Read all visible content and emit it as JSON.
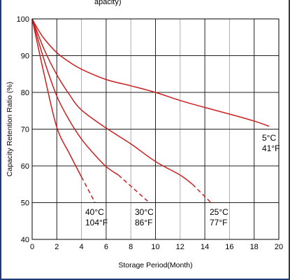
{
  "header": {
    "partial_text": "apacity)"
  },
  "chart_data": {
    "type": "line",
    "title": "",
    "xlabel": "Storage Period(Month)",
    "ylabel": "Capacity Retention Ratio (%)",
    "xlim": [
      0,
      20
    ],
    "ylim": [
      40,
      100
    ],
    "x_ticks": [
      "0",
      "2",
      "4",
      "6",
      "8",
      "10",
      "12",
      "14",
      "16",
      "18",
      "20"
    ],
    "y_ticks": [
      "40",
      "50",
      "60",
      "70",
      "80",
      "90",
      "100"
    ],
    "grid": true,
    "line_color": "#cc1f1f",
    "series": [
      {
        "solid": [
          [
            0,
            100
          ],
          [
            0.5,
            97
          ],
          [
            1,
            94.5
          ],
          [
            2,
            90.8
          ],
          [
            3,
            88.3
          ],
          [
            4,
            86.3
          ],
          [
            6,
            83.5
          ],
          [
            8,
            81.8
          ],
          [
            10,
            80
          ],
          [
            12,
            77.8
          ],
          [
            14,
            75.9
          ],
          [
            16,
            74.1
          ],
          [
            18,
            72.2
          ],
          [
            19.2,
            70.8
          ]
        ],
        "dashed": [],
        "label_lines": [
          "5°C",
          "41°F"
        ]
      },
      {
        "solid": [
          [
            0,
            100
          ],
          [
            1,
            91.5
          ],
          [
            2,
            84.8
          ],
          [
            3,
            79.5
          ],
          [
            4,
            75.2
          ],
          [
            6,
            70.3
          ],
          [
            8,
            66
          ],
          [
            10,
            61.2
          ],
          [
            12,
            57.5
          ],
          [
            13,
            55
          ]
        ],
        "dashed": [
          [
            13,
            55
          ],
          [
            14.5,
            50
          ]
        ],
        "label_lines": [
          "25°C",
          "77°F"
        ]
      },
      {
        "solid": [
          [
            0,
            100
          ],
          [
            1,
            88.5
          ],
          [
            2,
            79
          ],
          [
            3,
            72.5
          ],
          [
            4,
            67.3
          ],
          [
            5,
            63.3
          ],
          [
            6,
            59.8
          ],
          [
            7,
            57.5
          ]
        ],
        "dashed": [
          [
            7,
            57.5
          ],
          [
            9.5,
            50
          ]
        ],
        "label_lines": [
          "30°C",
          "86°F"
        ]
      },
      {
        "solid": [
          [
            0,
            100
          ],
          [
            1,
            84.5
          ],
          [
            2,
            70.5
          ],
          [
            3,
            63.5
          ],
          [
            4,
            57
          ]
        ],
        "dashed": [
          [
            4,
            57
          ],
          [
            5.1,
            50
          ]
        ],
        "label_lines": [
          "40°C",
          "104°F"
        ]
      }
    ]
  }
}
